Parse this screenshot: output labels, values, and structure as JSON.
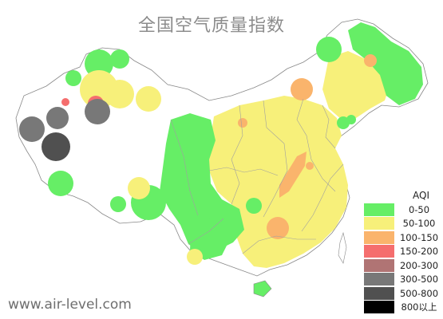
{
  "title": "全国空气质量指数",
  "website": "www.air-level.com",
  "legend": {
    "title": "AQI",
    "items": [
      {
        "label": "0-50",
        "color": "#66ee66"
      },
      {
        "label": "50-100",
        "color": "#f7f07a"
      },
      {
        "label": "100-150",
        "color": "#fab46c"
      },
      {
        "label": "150-200",
        "color": "#f56e6e"
      },
      {
        "label": "200-300",
        "color": "#b07474"
      },
      {
        "label": "300-500",
        "color": "#787878"
      },
      {
        "label": "500-800",
        "color": "#505050"
      },
      {
        "label": "800以上",
        "color": "#000000"
      }
    ]
  }
}
